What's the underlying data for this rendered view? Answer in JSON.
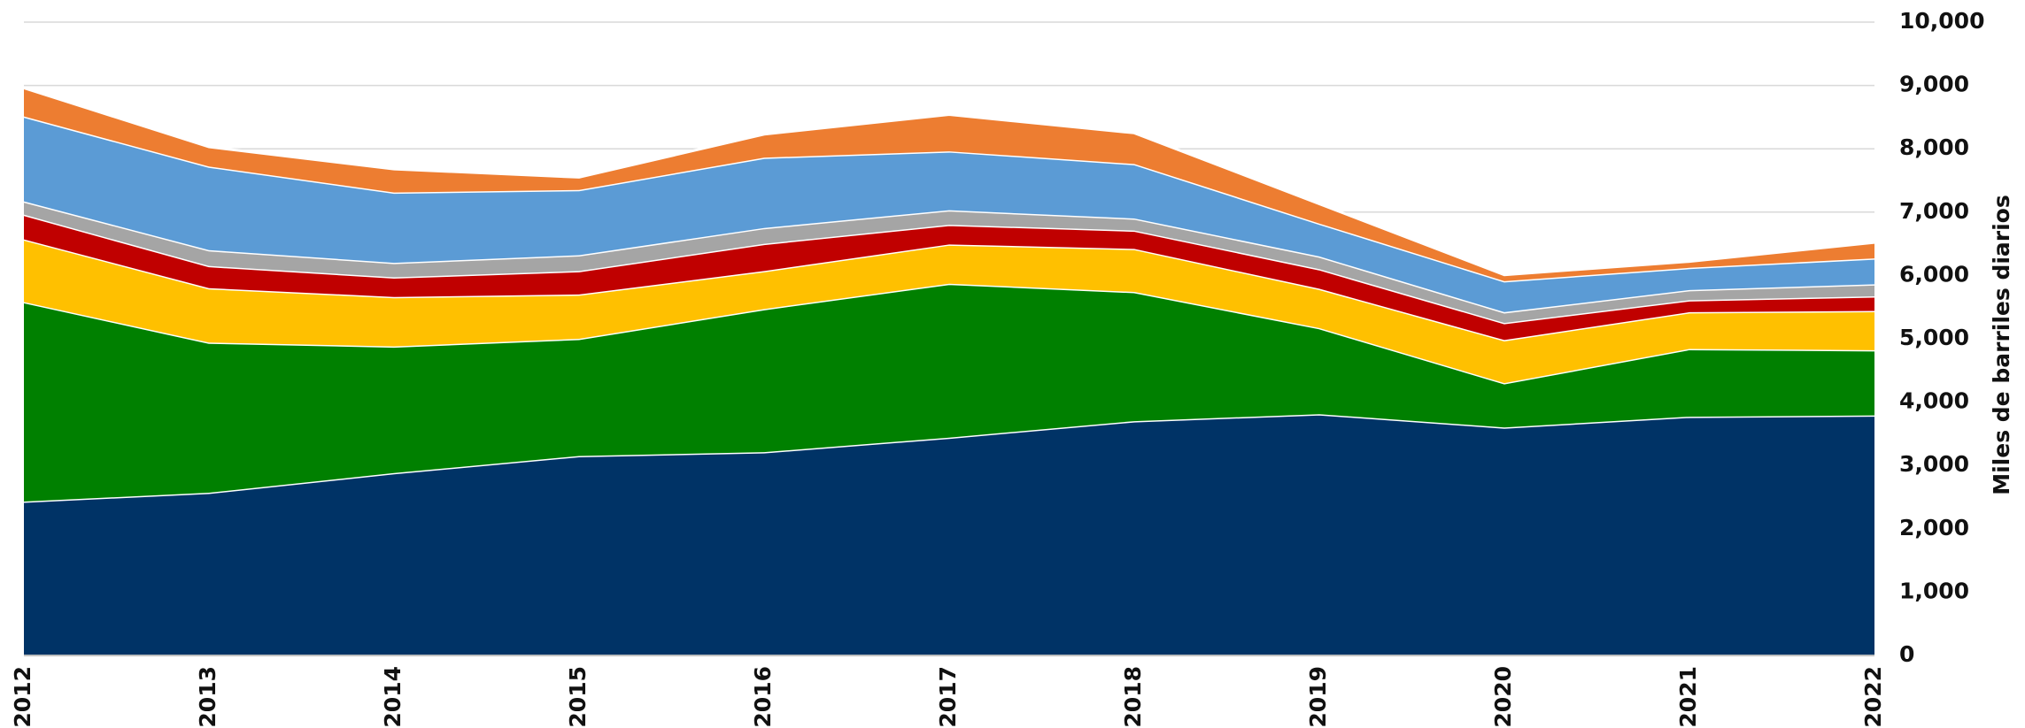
{
  "chart_data": {
    "type": "stacked-area",
    "y_label": "Miles de barriles diarios",
    "categories": [
      "2012",
      "2013",
      "2014",
      "2015",
      "2016",
      "2017",
      "2018",
      "2019",
      "2020",
      "2021",
      "2022"
    ],
    "series": [
      {
        "color": "#003366",
        "values": [
          2430,
          2570,
          2880,
          3150,
          3210,
          3440,
          3700,
          3810,
          3600,
          3770,
          3790
        ]
      },
      {
        "color": "#008000",
        "values": [
          3150,
          2370,
          2000,
          1850,
          2260,
          2430,
          2040,
          1360,
          700,
          1070,
          1030
        ]
      },
      {
        "color": "#ffc000",
        "values": [
          990,
          860,
          780,
          700,
          600,
          620,
          680,
          620,
          680,
          580,
          620
        ]
      },
      {
        "color": "#c00000",
        "values": [
          390,
          350,
          310,
          370,
          430,
          310,
          290,
          310,
          270,
          190,
          230
        ]
      },
      {
        "color": "#a5a5a5",
        "values": [
          210,
          250,
          230,
          250,
          250,
          230,
          190,
          200,
          170,
          160,
          190
        ]
      },
      {
        "color": "#5b9bd5",
        "values": [
          1340,
          1320,
          1110,
          1030,
          1110,
          930,
          860,
          520,
          490,
          350,
          410
        ]
      },
      {
        "color": "#ed7d31",
        "values": [
          450,
          310,
          370,
          200,
          370,
          580,
          490,
          310,
          100,
          100,
          250
        ]
      }
    ],
    "ylim": [
      0,
      10000
    ],
    "yticks": [
      0,
      {
        "value": 1000,
        "label": "1,000"
      },
      {
        "value": 2000,
        "label": "2,000"
      },
      {
        "value": 3000,
        "label": "3,000"
      },
      {
        "value": 4000,
        "label": "4,000"
      },
      {
        "value": 5000,
        "label": "5,000"
      },
      {
        "value": 6000,
        "label": "6,000"
      },
      {
        "value": 7000,
        "label": "7,000"
      },
      {
        "value": 8000,
        "label": "8,000"
      },
      {
        "value": 9000,
        "label": "9,000"
      },
      {
        "value": 10000,
        "label": "10,000"
      }
    ],
    "grid": true
  }
}
